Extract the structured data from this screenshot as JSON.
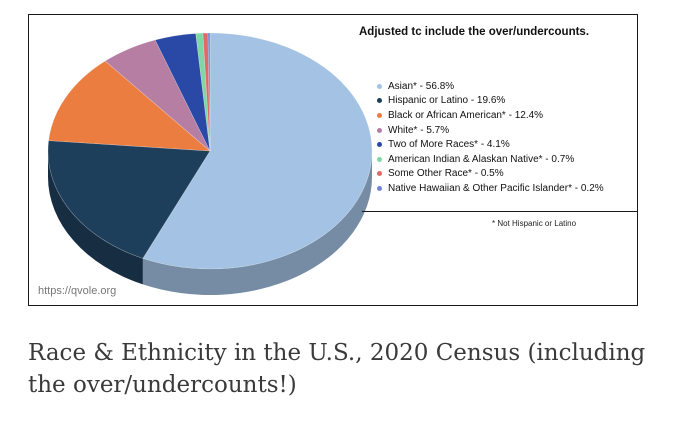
{
  "chart_data": {
    "type": "pie",
    "title": "Adjusted tc include the over/undercounts.",
    "style": "3d",
    "legend_position": "right",
    "categories": [
      "Asian* - 56.8%",
      "Hispanic or Latino - 19.6%",
      "Black or African American* - 12.4%",
      "White* - 5.7%",
      "Two of More Races* - 4.1%",
      "American Indian & Alaskan Native* - 0.7%",
      "Some Other Race* - 0.5%",
      "Native Hawaiian & Other Pacific Islander* - 0.2%"
    ],
    "values": [
      56.8,
      19.6,
      12.4,
      5.7,
      4.1,
      0.7,
      0.5,
      0.2
    ],
    "colors": [
      "#a4c3e4",
      "#1e3f5c",
      "#ec7d40",
      "#b57ea2",
      "#2a48a6",
      "#7fd7a5",
      "#e06a6a",
      "#7285d8"
    ],
    "footnote": "* Not Hispanic or Latino",
    "watermark": "https://qvole.org"
  },
  "caption": "Race & Ethnicity in the U.S., 2020 Census (including the over/undercounts!)"
}
